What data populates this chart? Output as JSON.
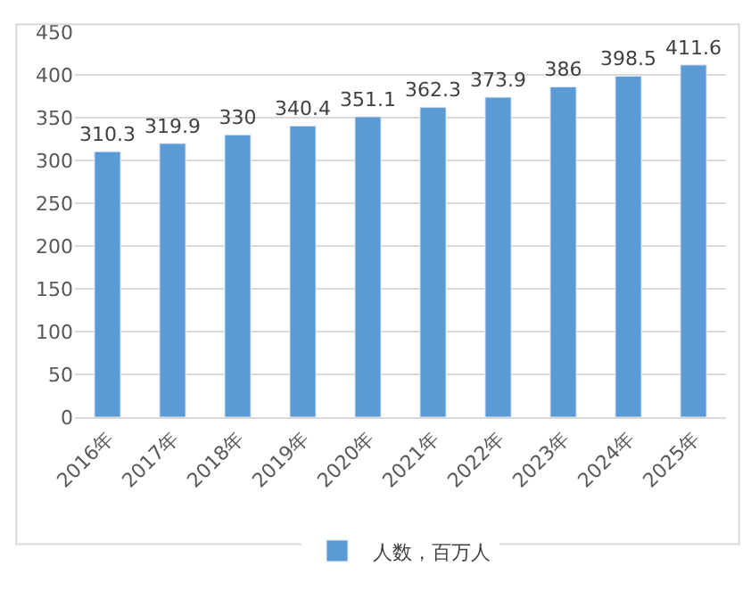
{
  "chart_data": {
    "type": "bar",
    "categories": [
      "2016年",
      "2017年",
      "2018年",
      "2019年",
      "2020年",
      "2021年",
      "2022年",
      "2023年",
      "2024年",
      "2025年"
    ],
    "series": [
      {
        "name": "人数，百万人",
        "color": "#5b9bd5",
        "values": [
          310.3,
          319.9,
          330,
          340.4,
          351.1,
          362.3,
          373.9,
          386,
          398.5,
          411.6
        ]
      }
    ],
    "ylim": [
      0,
      450
    ],
    "yticks": [
      0,
      50,
      100,
      150,
      200,
      250,
      300,
      350,
      400,
      450
    ],
    "grid": "y",
    "legend": "bottom",
    "data_labels": true
  }
}
